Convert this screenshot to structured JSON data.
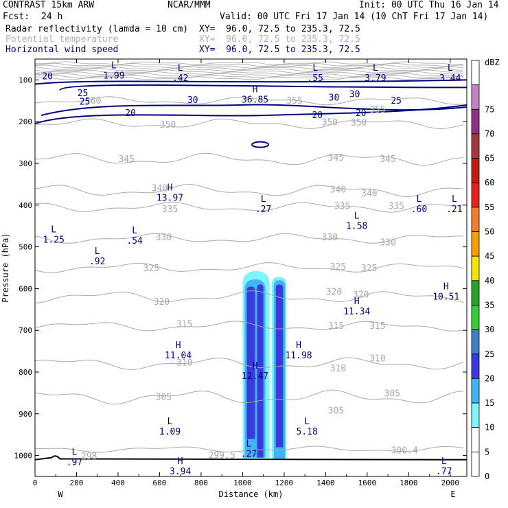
{
  "header": {
    "title_left": "CONTRAST 15km ARW",
    "center": "NCAR/MMM",
    "init": "Init: 00 UTC Thu 16 Jan 14",
    "fcst_label": "Fcst:",
    "fcst_value": "24 h",
    "valid": "Valid: 00 UTC Fri 17 Jan 14 (10 ChT Fri 17 Jan 14)",
    "fields": [
      {
        "name": "Radar reflectivity (lamda = 10 cm)",
        "xy": "XY=  96.0, 72.5 to 235.3, 72.5",
        "color": "#000000"
      },
      {
        "name": "Potential temperature",
        "xy": "XY=  96.0, 72.5 to 235.3, 72.5",
        "color": "#b0b0b0"
      },
      {
        "name": "Horizontal wind speed",
        "xy": "XY=  96.0, 72.5 to 235.3, 72.5",
        "color": "#000080"
      }
    ]
  },
  "chart_data": {
    "type": "cross-section contour",
    "xlabel": "Distance (km)",
    "ylabel": "Pressure (hPa)",
    "xlim": [
      0,
      2080
    ],
    "ylim": [
      1050,
      50
    ],
    "x_ticks": [
      0,
      200,
      400,
      600,
      800,
      1000,
      1200,
      1400,
      1600,
      1800,
      2000
    ],
    "y_ticks": [
      100,
      200,
      300,
      400,
      500,
      600,
      700,
      800,
      900,
      1000
    ],
    "x_end_labels": {
      "left": "W",
      "right": "E"
    },
    "colorbar": {
      "unit": "dBZ",
      "levels": [
        {
          "label": "0",
          "color": "#ffffff"
        },
        {
          "label": "5",
          "color": "#ffffff"
        },
        {
          "label": "10",
          "color": "#7ff5fa"
        },
        {
          "label": "15",
          "color": "#42b4f4"
        },
        {
          "label": "20",
          "color": "#3a3ade"
        },
        {
          "label": "25",
          "color": "#3e7fc4"
        },
        {
          "label": "30",
          "color": "#34cd34"
        },
        {
          "label": "35",
          "color": "#29a229"
        },
        {
          "label": "40",
          "color": "#f5e600"
        },
        {
          "label": "45",
          "color": "#f6a000"
        },
        {
          "label": "50",
          "color": "#f07f2c"
        },
        {
          "label": "55",
          "color": "#e6201c"
        },
        {
          "label": "60",
          "color": "#c21a14"
        },
        {
          "label": "65",
          "color": "#a4373f"
        },
        {
          "label": "70",
          "color": "#8e2f8a"
        },
        {
          "label": "75",
          "color": "#c184c4"
        },
        {
          "label": "",
          "color": "#ffffff"
        }
      ]
    },
    "theta_labels": [
      {
        "v": "360",
        "x": 280,
        "p": 150
      },
      {
        "v": "355",
        "x": 1250,
        "p": 150
      },
      {
        "v": "355",
        "x": 1650,
        "p": 172
      },
      {
        "v": "350",
        "x": 640,
        "p": 208
      },
      {
        "v": "350",
        "x": 1420,
        "p": 202
      },
      {
        "v": "350",
        "x": 1560,
        "p": 203
      },
      {
        "v": "345",
        "x": 440,
        "p": 290
      },
      {
        "v": "345",
        "x": 1450,
        "p": 287
      },
      {
        "v": "345",
        "x": 1700,
        "p": 290
      },
      {
        "v": "340",
        "x": 600,
        "p": 360
      },
      {
        "v": "340",
        "x": 1460,
        "p": 363
      },
      {
        "v": "340",
        "x": 1610,
        "p": 372
      },
      {
        "v": "335",
        "x": 650,
        "p": 410
      },
      {
        "v": "335",
        "x": 1480,
        "p": 403
      },
      {
        "v": "335",
        "x": 1740,
        "p": 403
      },
      {
        "v": "330",
        "x": 620,
        "p": 478
      },
      {
        "v": "330",
        "x": 1420,
        "p": 478
      },
      {
        "v": "330",
        "x": 1700,
        "p": 490
      },
      {
        "v": "325",
        "x": 560,
        "p": 552
      },
      {
        "v": "325",
        "x": 1460,
        "p": 548
      },
      {
        "v": "325",
        "x": 1610,
        "p": 552
      },
      {
        "v": "320",
        "x": 610,
        "p": 632
      },
      {
        "v": "320",
        "x": 1440,
        "p": 608
      },
      {
        "v": "320",
        "x": 1570,
        "p": 615
      },
      {
        "v": "315",
        "x": 720,
        "p": 686
      },
      {
        "v": "315",
        "x": 1450,
        "p": 690
      },
      {
        "v": "315",
        "x": 1650,
        "p": 690
      },
      {
        "v": "310",
        "x": 720,
        "p": 778
      },
      {
        "v": "310",
        "x": 1460,
        "p": 792
      },
      {
        "v": "310",
        "x": 1650,
        "p": 768
      },
      {
        "v": "305",
        "x": 620,
        "p": 860
      },
      {
        "v": "305",
        "x": 1450,
        "p": 893
      },
      {
        "v": "305",
        "x": 1720,
        "p": 852
      },
      {
        "v": "298",
        "x": 260,
        "p": 1002
      },
      {
        "v": "299.5",
        "x": 900,
        "p": 1000
      },
      {
        "v": "300.4",
        "x": 1780,
        "p": 988
      }
    ],
    "wind_labels": [
      {
        "v": "20",
        "x": 60,
        "p": 92
      },
      {
        "v": "25",
        "x": 230,
        "p": 132
      },
      {
        "v": "25",
        "x": 240,
        "p": 153
      },
      {
        "v": "30",
        "x": 760,
        "p": 149
      },
      {
        "v": "30",
        "x": 1440,
        "p": 143
      },
      {
        "v": "30",
        "x": 1540,
        "p": 135
      },
      {
        "v": "25",
        "x": 1740,
        "p": 150
      },
      {
        "v": "20",
        "x": 460,
        "p": 180
      },
      {
        "v": "20",
        "x": 1360,
        "p": 185
      },
      {
        "v": "20",
        "x": 1570,
        "p": 180
      }
    ],
    "extrema": [
      {
        "type": "L",
        "value": "1.99",
        "x": 380,
        "p": 82
      },
      {
        "type": "L",
        "value": ".42",
        "x": 700,
        "p": 88
      },
      {
        "type": "L",
        "value": ".55",
        "x": 1350,
        "p": 88
      },
      {
        "type": "L",
        "value": "3.79",
        "x": 1640,
        "p": 88
      },
      {
        "type": "L",
        "value": "3.44",
        "x": 2000,
        "p": 88
      },
      {
        "type": "H",
        "value": "36.85",
        "x": 1060,
        "p": 140
      },
      {
        "type": "H",
        "value": "13.97",
        "x": 650,
        "p": 375
      },
      {
        "type": "L",
        "value": ".27",
        "x": 1100,
        "p": 402
      },
      {
        "type": "L",
        "value": "1.58",
        "x": 1550,
        "p": 442
      },
      {
        "type": "L",
        "value": ".60",
        "x": 1850,
        "p": 402
      },
      {
        "type": "L",
        "value": ".21",
        "x": 2020,
        "p": 402
      },
      {
        "type": "L",
        "value": "1.25",
        "x": 90,
        "p": 475
      },
      {
        "type": "L",
        "value": ".54",
        "x": 480,
        "p": 478
      },
      {
        "type": "L",
        "value": ".92",
        "x": 300,
        "p": 527
      },
      {
        "type": "H",
        "value": "10.51",
        "x": 1980,
        "p": 612
      },
      {
        "type": "H",
        "value": "11.34",
        "x": 1550,
        "p": 647
      },
      {
        "type": "H",
        "value": "11.04",
        "x": 690,
        "p": 752
      },
      {
        "type": "H",
        "value": "11.98",
        "x": 1270,
        "p": 752
      },
      {
        "type": "H",
        "value": "12.47",
        "x": 1060,
        "p": 802
      },
      {
        "type": "L",
        "value": "1.09",
        "x": 650,
        "p": 935
      },
      {
        "type": "L",
        "value": "5.18",
        "x": 1310,
        "p": 935
      },
      {
        "type": "L",
        "value": ".27",
        "x": 1030,
        "p": 988
      },
      {
        "type": "L",
        "value": ".97",
        "x": 190,
        "p": 1008
      },
      {
        "type": "H",
        "value": "3.94",
        "x": 700,
        "p": 1030
      },
      {
        "type": "L",
        "value": ".77",
        "x": 1970,
        "p": 1030
      }
    ],
    "reflectivity_cells": [
      {
        "x0": 1000,
        "x1": 1130,
        "p_top": 558,
        "p_bottom": 1010,
        "dbz": 10
      },
      {
        "x0": 1010,
        "x1": 1110,
        "p_top": 578,
        "p_bottom": 1005,
        "dbz": 15
      },
      {
        "x0": 1020,
        "x1": 1060,
        "p_top": 595,
        "p_bottom": 960,
        "dbz": 20
      },
      {
        "x0": 1070,
        "x1": 1100,
        "p_top": 590,
        "p_bottom": 1005,
        "dbz": 20
      },
      {
        "x0": 1140,
        "x1": 1210,
        "p_top": 572,
        "p_bottom": 1010,
        "dbz": 10
      },
      {
        "x0": 1150,
        "x1": 1205,
        "p_top": 580,
        "p_bottom": 1010,
        "dbz": 15
      },
      {
        "x0": 1160,
        "x1": 1195,
        "p_top": 590,
        "p_bottom": 980,
        "dbz": 20
      }
    ]
  }
}
